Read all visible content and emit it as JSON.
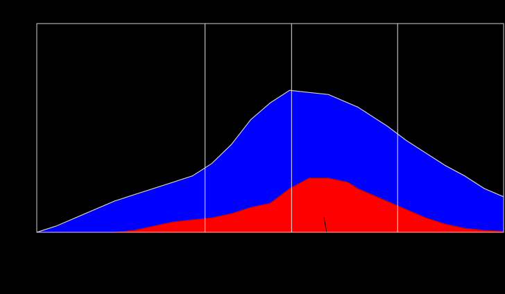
{
  "chart_data": {
    "type": "area",
    "title": "",
    "xlabel": "",
    "ylabel": "",
    "grid": false,
    "xlim": [
      0,
      24
    ],
    "ylim": [
      0,
      1
    ],
    "x": [
      0,
      1,
      2,
      3,
      4,
      5,
      6,
      7,
      8,
      8.5,
      9,
      10,
      11,
      12,
      13,
      14,
      15,
      16,
      16.5,
      17,
      17.5,
      18,
      19,
      20,
      21,
      22,
      23,
      24
    ],
    "vertical_markers": [
      8.65,
      13.1,
      18.55
    ],
    "series": [
      {
        "color": "#0000ff",
        "stroke": "#c8c8ff",
        "values": [
          0,
          0.03,
          0.07,
          0.11,
          0.15,
          0.18,
          0.21,
          0.24,
          0.27,
          0.3,
          0.33,
          0.42,
          0.54,
          0.62,
          0.68,
          0.67,
          0.66,
          0.62,
          0.6,
          0.57,
          0.54,
          0.51,
          0.44,
          0.38,
          0.32,
          0.27,
          0.21,
          0.17
        ]
      },
      {
        "color": "#ff0000",
        "stroke": "#b40000",
        "values": [
          0,
          0,
          0,
          0,
          0,
          0.01,
          0.03,
          0.05,
          0.06,
          0.065,
          0.07,
          0.09,
          0.12,
          0.14,
          0.21,
          0.26,
          0.26,
          0.24,
          0.21,
          0.19,
          0.17,
          0.15,
          0.11,
          0.07,
          0.04,
          0.02,
          0.01,
          0.005
        ]
      }
    ]
  }
}
